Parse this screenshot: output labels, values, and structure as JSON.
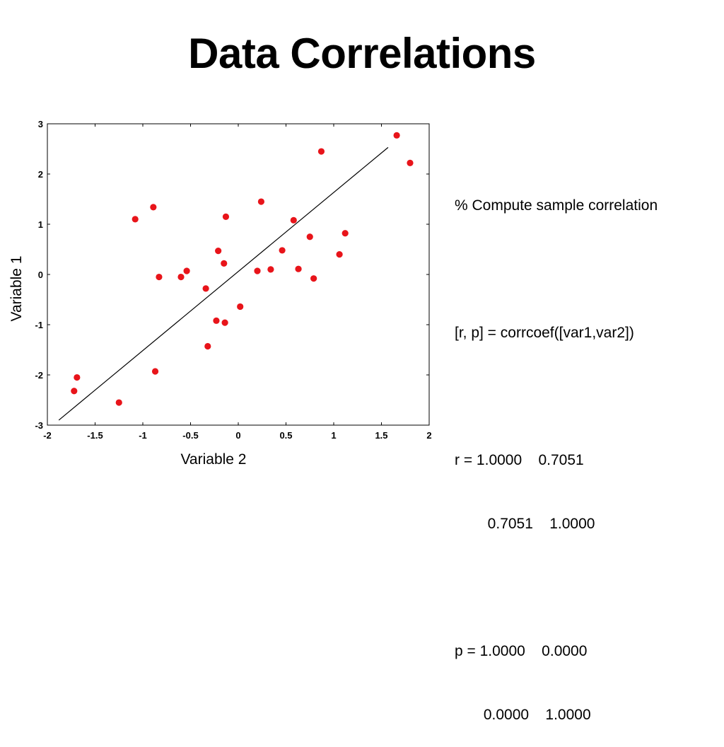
{
  "slide": {
    "title": "Data Correlations"
  },
  "code": {
    "comment": "% Compute sample correlation",
    "command": "[r, p] = corrcoef([var1,var2])",
    "r_row1": "r = 1.0000    0.7051",
    "r_row2": "        0.7051    1.0000",
    "p_row1": "p = 1.0000    0.0000",
    "p_row2": "       0.0000    1.0000"
  },
  "colors": {
    "points": "#e8141a",
    "fit_line": "#000000",
    "axes": "#000000",
    "background": "#ffffff"
  },
  "chart_data": {
    "type": "scatter",
    "title": "",
    "xlabel": "Variable 2",
    "ylabel": "Variable 1",
    "xlim": [
      -2,
      2
    ],
    "ylim": [
      -3,
      3
    ],
    "xticks": [
      -2,
      -1.5,
      -1,
      -0.5,
      0,
      0.5,
      1,
      1.5,
      2
    ],
    "xtick_labels": [
      "-2",
      "-1.5",
      "-1",
      "-0.5",
      "0",
      "0.5",
      "1",
      "1.5",
      "2"
    ],
    "yticks": [
      -3,
      -2,
      -1,
      0,
      1,
      2,
      3
    ],
    "ytick_labels": [
      "-3",
      "-2",
      "-1",
      "0",
      "1",
      "2",
      "3"
    ],
    "grid": false,
    "legend": "none",
    "points": [
      {
        "x": -1.72,
        "y": -2.32
      },
      {
        "x": -1.69,
        "y": -2.05
      },
      {
        "x": -1.25,
        "y": -2.55
      },
      {
        "x": -1.08,
        "y": 1.1
      },
      {
        "x": -0.89,
        "y": 1.34
      },
      {
        "x": -0.87,
        "y": -1.93
      },
      {
        "x": -0.83,
        "y": -0.05
      },
      {
        "x": -0.6,
        "y": -0.05
      },
      {
        "x": -0.54,
        "y": 0.07
      },
      {
        "x": -0.34,
        "y": -0.28
      },
      {
        "x": -0.32,
        "y": -1.43
      },
      {
        "x": -0.23,
        "y": -0.92
      },
      {
        "x": -0.21,
        "y": 0.47
      },
      {
        "x": -0.15,
        "y": 0.22
      },
      {
        "x": -0.13,
        "y": 1.15
      },
      {
        "x": -0.14,
        "y": -0.96
      },
      {
        "x": 0.02,
        "y": -0.64
      },
      {
        "x": 0.2,
        "y": 0.07
      },
      {
        "x": 0.24,
        "y": 1.45
      },
      {
        "x": 0.34,
        "y": 0.1
      },
      {
        "x": 0.46,
        "y": 0.48
      },
      {
        "x": 0.58,
        "y": 1.08
      },
      {
        "x": 0.63,
        "y": 0.11
      },
      {
        "x": 0.75,
        "y": 0.75
      },
      {
        "x": 0.79,
        "y": -0.08
      },
      {
        "x": 0.87,
        "y": 2.45
      },
      {
        "x": 1.06,
        "y": 0.4
      },
      {
        "x": 1.12,
        "y": 0.82
      },
      {
        "x": 1.66,
        "y": 2.77
      },
      {
        "x": 1.8,
        "y": 2.22
      }
    ],
    "fit_line": {
      "x": [
        -1.88,
        1.57
      ],
      "y": [
        -2.9,
        2.53
      ]
    }
  }
}
